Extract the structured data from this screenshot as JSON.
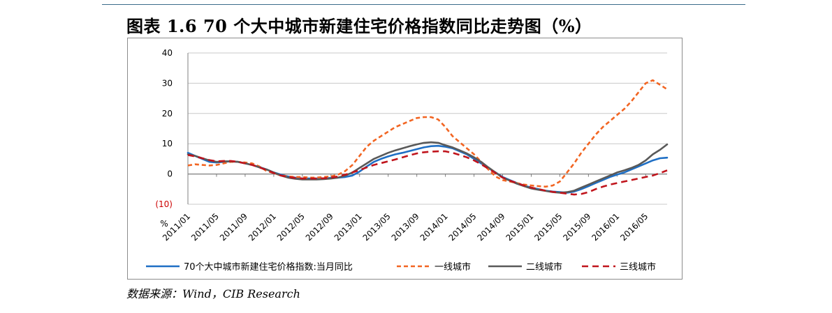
{
  "figure": {
    "title": "图表 1.6  70 个大中城市新建住宅价格指数同比走势图（%）",
    "source": "数据来源：Wind，CIB Research"
  },
  "chart_data": {
    "type": "line",
    "unit_label": "%",
    "ylim": [
      -10,
      40
    ],
    "y_ticks": [
      40,
      30,
      20,
      10,
      0,
      -10
    ],
    "y_tick_labels": [
      "40",
      "30",
      "20",
      "10",
      "0",
      "(10)"
    ],
    "x_tick_labels": [
      "2011/01",
      "2011/05",
      "2011/09",
      "2012/01",
      "2012/05",
      "2012/09",
      "2013/01",
      "2013/05",
      "2013/09",
      "2014/01",
      "2014/05",
      "2014/09",
      "2015/01",
      "2015/05",
      "2015/09",
      "2016/01",
      "2016/05"
    ],
    "x_start": "2011/01",
    "x_end": "2016/06",
    "grid": "horizontal",
    "legend_position": "bottom",
    "colors": {
      "negative_tick": "#cc0000"
    },
    "series": [
      {
        "name": "70个大中城市新建住宅价格指数:当月同比",
        "color": "#1f6fc5",
        "dash": "solid",
        "values": [
          7.0,
          6.0,
          5.0,
          4.0,
          3.8,
          4.0,
          4.2,
          4.0,
          3.5,
          3.0,
          2.3,
          1.5,
          0.5,
          -0.2,
          -0.8,
          -1.2,
          -1.5,
          -1.5,
          -1.5,
          -1.5,
          -1.3,
          -1.2,
          -1.0,
          -0.5,
          0.8,
          2.5,
          4.0,
          5.0,
          5.8,
          6.5,
          7.0,
          7.6,
          8.2,
          8.8,
          9.2,
          9.3,
          9.0,
          8.5,
          7.5,
          6.5,
          5.0,
          3.5,
          2.0,
          0.5,
          -1.0,
          -2.0,
          -3.0,
          -3.8,
          -4.5,
          -5.0,
          -5.5,
          -5.8,
          -6.0,
          -6.2,
          -5.8,
          -5.0,
          -4.0,
          -3.0,
          -2.0,
          -1.0,
          -0.2,
          0.5,
          1.5,
          2.5,
          3.5,
          4.5,
          5.2,
          5.4
        ]
      },
      {
        "name": "一线城市",
        "color": "#f26522",
        "dash": "dash",
        "values": [
          2.8,
          3.2,
          3.0,
          2.8,
          3.0,
          3.5,
          4.0,
          4.0,
          3.8,
          3.5,
          2.5,
          1.0,
          0.3,
          -0.5,
          -0.8,
          -1.0,
          -1.0,
          -1.2,
          -1.2,
          -1.0,
          -0.8,
          -0.2,
          1.0,
          3.0,
          6.0,
          9.0,
          11.0,
          12.5,
          14.0,
          15.5,
          16.5,
          17.5,
          18.5,
          18.8,
          18.8,
          18.0,
          15.5,
          12.5,
          10.5,
          8.5,
          6.5,
          4.0,
          1.5,
          -0.8,
          -2.0,
          -2.5,
          -3.0,
          -3.5,
          -3.8,
          -4.0,
          -4.2,
          -3.8,
          -2.5,
          0.5,
          3.5,
          7.0,
          10.0,
          13.0,
          15.5,
          17.5,
          19.5,
          21.5,
          24.0,
          27.0,
          30.0,
          31.0,
          29.5,
          28.0
        ]
      },
      {
        "name": "二线城市",
        "color": "#595959",
        "dash": "solid",
        "values": [
          6.5,
          6.0,
          5.2,
          4.5,
          4.0,
          4.2,
          4.2,
          4.0,
          3.5,
          3.0,
          2.2,
          1.5,
          0.5,
          -0.5,
          -1.2,
          -1.6,
          -1.8,
          -1.8,
          -1.8,
          -1.7,
          -1.5,
          -1.2,
          -0.5,
          0.5,
          2.0,
          3.5,
          5.0,
          6.0,
          7.0,
          7.8,
          8.5,
          9.2,
          9.8,
          10.3,
          10.5,
          10.3,
          9.5,
          8.8,
          7.8,
          6.8,
          5.5,
          4.0,
          2.2,
          0.5,
          -1.2,
          -2.2,
          -3.2,
          -4.0,
          -4.8,
          -5.2,
          -5.6,
          -6.0,
          -6.2,
          -6.0,
          -5.5,
          -4.5,
          -3.5,
          -2.5,
          -1.5,
          -0.5,
          0.5,
          1.2,
          2.0,
          3.0,
          4.5,
          6.5,
          8.0,
          9.8
        ]
      },
      {
        "name": "三线城市",
        "color": "#c0141c",
        "dash": "longdash",
        "values": [
          6.3,
          5.8,
          5.2,
          4.6,
          4.2,
          4.3,
          4.3,
          4.0,
          3.5,
          3.0,
          2.2,
          1.3,
          0.3,
          -0.5,
          -1.0,
          -1.3,
          -1.5,
          -1.5,
          -1.5,
          -1.4,
          -1.2,
          -0.8,
          -0.2,
          0.5,
          1.3,
          2.2,
          3.0,
          3.6,
          4.2,
          4.8,
          5.5,
          6.2,
          6.8,
          7.2,
          7.4,
          7.5,
          7.5,
          7.0,
          6.3,
          5.5,
          4.5,
          3.2,
          1.8,
          0.3,
          -1.2,
          -2.2,
          -3.0,
          -3.8,
          -4.5,
          -5.0,
          -5.5,
          -5.9,
          -6.2,
          -6.5,
          -6.8,
          -6.6,
          -6.0,
          -5.0,
          -4.2,
          -3.5,
          -3.0,
          -2.5,
          -2.0,
          -1.5,
          -1.0,
          -0.5,
          0.3,
          1.2
        ]
      }
    ]
  }
}
